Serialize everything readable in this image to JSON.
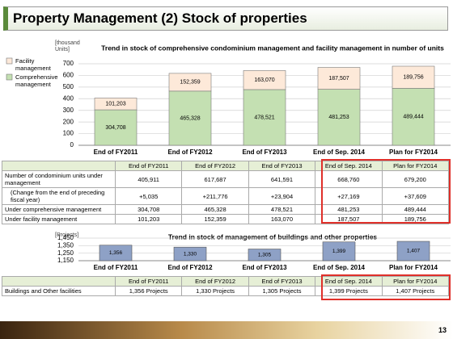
{
  "title": "Property Management (2) Stock of properties",
  "chart_data": [
    {
      "type": "stacked_bar",
      "title": "Trend in stock of comprehensive condominium management and facility management in number of units",
      "y_label": "[thousand Units]",
      "categories": [
        "End of FY2011",
        "End of FY2012",
        "End of FY2013",
        "End of Sep. 2014",
        "Plan for FY2014"
      ],
      "series": [
        {
          "name": "Comprehensive management",
          "color": "#c4e0b2",
          "values": [
            304.708,
            465.328,
            478.521,
            481.253,
            489.444
          ],
          "value_labels": [
            "304,708",
            "465,328",
            "478,521",
            "481,253",
            "489,444"
          ]
        },
        {
          "name": "Facility management",
          "color": "#fde9d9",
          "values": [
            101.203,
            152.359,
            163.07,
            187.507,
            189.756
          ],
          "value_labels": [
            "101,203",
            "152,359",
            "163,070",
            "187,507",
            "189,756"
          ]
        }
      ],
      "ylim": [
        0,
        700
      ],
      "yticks": [
        0,
        100,
        200,
        300,
        400,
        500,
        600,
        700
      ],
      "grid": true,
      "legend": "left"
    },
    {
      "type": "bar",
      "title": "Trend in stock of management of buildings and other properties",
      "y_label": "[Projects]",
      "categories": [
        "End of FY2011",
        "End of FY2012",
        "End of FY2013",
        "End of Sep. 2014",
        "Plan for FY2014"
      ],
      "color": "#8ea1c6",
      "values": [
        1356,
        1330,
        1305,
        1399,
        1407
      ],
      "value_labels": [
        "1,356",
        "1,330",
        "1,305",
        "1,399",
        "1,407"
      ],
      "ylim": [
        1150,
        1450
      ],
      "yticks": [
        {
          "value": 1150,
          "label": "1,150"
        },
        {
          "value": 1250,
          "label": "1,250"
        },
        {
          "value": 1350,
          "label": "1,350"
        },
        {
          "value": 1450,
          "label": "1,450"
        }
      ],
      "grid": true
    }
  ],
  "tables": [
    {
      "header": [
        "End of FY2011",
        "End of FY2012",
        "End of FY2013",
        "End of Sep. 2014",
        "Plan for FY2014"
      ],
      "rows": [
        [
          "Number of condominium units under management",
          "405,911",
          "617,687",
          "641,591",
          "668,760",
          "679,200"
        ],
        [
          "(Change from the end of preceding fiscal year)",
          "+5,035",
          "+211,776",
          "+23,904",
          "+27,169",
          "+37,609"
        ],
        [
          "Under comprehensive management",
          "304,708",
          "465,328",
          "478,521",
          "481,253",
          "489,444"
        ],
        [
          "Under facility management",
          "101,203",
          "152,359",
          "163,070",
          "187,507",
          "189,756"
        ]
      ]
    },
    {
      "header": [
        "End of FY2011",
        "End of FY2012",
        "End of FY2013",
        "End of Sep. 2014",
        "Plan for FY2014"
      ],
      "rows": [
        [
          "Buildings and Other facilities",
          "1,356 Projects",
          "1,330 Projects",
          "1,305 Projects",
          "1,399 Projects",
          "1,407 Projects"
        ]
      ]
    }
  ],
  "page_number": "13"
}
